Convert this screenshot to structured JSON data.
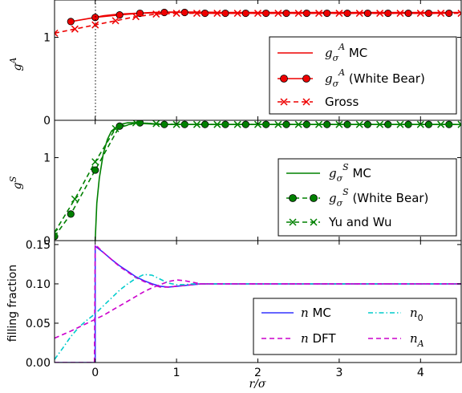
{
  "chart_data": [
    {
      "type": "line",
      "panel": "top",
      "ylabel": "g^A",
      "xlim": [
        -0.5,
        4.5
      ],
      "ylim": [
        0,
        1.45
      ],
      "yticks": [
        "0",
        "1"
      ],
      "legend_position": "lower-right",
      "series": [
        {
          "name": "g_σ^A  MC",
          "style": "solid",
          "color": "#ee0000",
          "x": [
            0,
            0.1,
            0.2,
            0.3,
            0.5,
            0.7,
            0.9,
            1.2,
            1.6,
            2.0,
            2.5,
            3.0,
            3.5,
            4.0,
            4.5
          ],
          "y": [
            1.24,
            1.26,
            1.27,
            1.28,
            1.29,
            1.3,
            1.305,
            1.305,
            1.3,
            1.3,
            1.3,
            1.3,
            1.3,
            1.3,
            1.3
          ]
        },
        {
          "name": "g_σ^A  (White Bear)",
          "style": "solid-circle",
          "color": "#ee0000",
          "x": [
            -0.3,
            0.0,
            0.3,
            0.55,
            0.85,
            1.1,
            1.35,
            1.6,
            1.85,
            2.1,
            2.35,
            2.6,
            2.85,
            3.1,
            3.35,
            3.6,
            3.85,
            4.1,
            4.35
          ],
          "y": [
            1.19,
            1.24,
            1.27,
            1.29,
            1.3,
            1.3,
            1.29,
            1.29,
            1.29,
            1.29,
            1.29,
            1.29,
            1.29,
            1.29,
            1.29,
            1.29,
            1.29,
            1.29,
            1.29
          ]
        },
        {
          "name": "Gross",
          "style": "dashed-x",
          "color": "#ee0000",
          "x": [
            -0.5,
            -0.25,
            0.0,
            0.25,
            0.5,
            0.75,
            1.0,
            1.25,
            1.5,
            1.75,
            2.0,
            2.25,
            2.5,
            2.75,
            3.0,
            3.25,
            3.5,
            3.75,
            4.0,
            4.25,
            4.5
          ],
          "y": [
            1.05,
            1.1,
            1.15,
            1.2,
            1.25,
            1.28,
            1.29,
            1.29,
            1.29,
            1.29,
            1.29,
            1.29,
            1.29,
            1.29,
            1.29,
            1.29,
            1.29,
            1.29,
            1.29,
            1.29,
            1.29
          ]
        }
      ],
      "legend": [
        "g_σ^A  MC",
        "g_σ^A  (White Bear)",
        "Gross"
      ]
    },
    {
      "type": "line",
      "panel": "middle",
      "ylabel": "g^S",
      "xlim": [
        -0.5,
        4.5
      ],
      "ylim": [
        0,
        1.45
      ],
      "yticks": [
        "0",
        "1"
      ],
      "legend_position": "lower-right",
      "series": [
        {
          "name": "g_σ^S  MC",
          "style": "solid",
          "color": "#008000",
          "x": [
            0,
            0.02,
            0.05,
            0.1,
            0.15,
            0.2,
            0.3,
            0.4,
            0.5,
            0.6,
            0.8,
            1.0,
            1.5,
            2.0,
            2.5,
            3.0,
            3.5,
            4.0,
            4.5
          ],
          "y": [
            0,
            0.45,
            0.75,
            1.05,
            1.22,
            1.32,
            1.4,
            1.42,
            1.42,
            1.41,
            1.4,
            1.4,
            1.4,
            1.4,
            1.4,
            1.4,
            1.4,
            1.4,
            1.4
          ]
        },
        {
          "name": "g_σ^S  (White Bear)",
          "style": "dashed-circle",
          "color": "#008000",
          "x": [
            -0.5,
            -0.3,
            0.0,
            0.3,
            0.55,
            0.85,
            1.1,
            1.35,
            1.6,
            1.85,
            2.1,
            2.35,
            2.6,
            2.85,
            3.1,
            3.35,
            3.6,
            3.85,
            4.1,
            4.35
          ],
          "y": [
            0.05,
            0.32,
            0.85,
            1.38,
            1.42,
            1.4,
            1.4,
            1.4,
            1.4,
            1.4,
            1.4,
            1.4,
            1.4,
            1.4,
            1.4,
            1.4,
            1.4,
            1.4,
            1.4,
            1.4
          ]
        },
        {
          "name": "Yu and Wu",
          "style": "dashed-x",
          "color": "#008000",
          "x": [
            -0.5,
            -0.25,
            0.0,
            0.25,
            0.5,
            0.75,
            1.0,
            1.25,
            1.5,
            1.75,
            2.0,
            2.25,
            2.5,
            2.75,
            3.0,
            3.25,
            3.5,
            3.75,
            4.0,
            4.25,
            4.5
          ],
          "y": [
            0.1,
            0.5,
            0.95,
            1.35,
            1.42,
            1.41,
            1.4,
            1.4,
            1.4,
            1.4,
            1.4,
            1.4,
            1.4,
            1.4,
            1.4,
            1.4,
            1.4,
            1.4,
            1.4,
            1.4,
            1.4
          ]
        }
      ],
      "legend": [
        "g_σ^S  MC",
        "g_σ^S  (White Bear)",
        "Yu and Wu"
      ]
    },
    {
      "type": "line",
      "panel": "bottom",
      "ylabel": "filling fraction",
      "xlabel": "r/σ",
      "xlim": [
        -0.5,
        4.5
      ],
      "ylim": [
        0,
        0.155
      ],
      "xticks": [
        "0",
        "1",
        "2",
        "3",
        "4"
      ],
      "yticks": [
        "0.00",
        "0.05",
        "0.10",
        "0.15"
      ],
      "legend_position": "lower-right",
      "legend_columns": 2,
      "series": [
        {
          "name": "n MC",
          "style": "solid",
          "color": "#3333ff",
          "x": [
            -0.5,
            -0.05,
            0.0,
            0.0,
            0.1,
            0.2,
            0.3,
            0.4,
            0.5,
            0.6,
            0.7,
            0.8,
            0.9,
            1.0,
            1.1,
            1.2,
            1.3,
            1.5,
            2.0,
            2.5,
            3.0,
            3.5,
            4.0,
            4.5
          ],
          "y": [
            0,
            0,
            0,
            0.148,
            0.14,
            0.131,
            0.123,
            0.116,
            0.109,
            0.104,
            0.1,
            0.097,
            0.096,
            0.097,
            0.098,
            0.099,
            0.1,
            0.1,
            0.1,
            0.1,
            0.1,
            0.1,
            0.1,
            0.1
          ]
        },
        {
          "name": "n DFT",
          "style": "dashed",
          "color": "#cc00cc",
          "x": [
            -0.5,
            -0.01,
            0.0,
            0.1,
            0.2,
            0.3,
            0.4,
            0.5,
            0.6,
            0.7,
            0.8,
            0.9,
            1.0,
            1.1,
            1.2,
            1.3,
            1.5,
            2.0,
            2.5,
            3.0,
            3.5,
            4.0,
            4.5
          ],
          "y": [
            0,
            0,
            0.15,
            0.14,
            0.131,
            0.122,
            0.115,
            0.108,
            0.103,
            0.099,
            0.096,
            0.096,
            0.097,
            0.098,
            0.099,
            0.1,
            0.1,
            0.1,
            0.1,
            0.1,
            0.1,
            0.1,
            0.1
          ]
        },
        {
          "name": "n_0",
          "style": "dashdot",
          "color": "#00cccc",
          "x": [
            -0.5,
            -0.4,
            -0.3,
            -0.2,
            -0.1,
            0.0,
            0.1,
            0.2,
            0.3,
            0.4,
            0.5,
            0.6,
            0.7,
            0.8,
            0.9,
            1.0,
            1.1,
            1.2,
            1.4,
            2.0,
            3.0,
            4.0,
            4.5
          ],
          "y": [
            0.004,
            0.018,
            0.033,
            0.045,
            0.054,
            0.062,
            0.072,
            0.082,
            0.092,
            0.1,
            0.107,
            0.112,
            0.111,
            0.106,
            0.101,
            0.099,
            0.099,
            0.1,
            0.1,
            0.1,
            0.1,
            0.1,
            0.1
          ]
        },
        {
          "name": "n_A",
          "style": "dashed",
          "color": "#cc00cc",
          "x": [
            -0.5,
            -0.3,
            -0.1,
            0.0,
            0.1,
            0.2,
            0.3,
            0.4,
            0.5,
            0.6,
            0.7,
            0.8,
            0.9,
            1.0,
            1.1,
            1.2,
            1.3,
            1.5,
            2.0,
            3.0,
            4.0,
            4.5
          ],
          "y": [
            0.031,
            0.04,
            0.05,
            0.055,
            0.06,
            0.066,
            0.072,
            0.078,
            0.084,
            0.09,
            0.095,
            0.099,
            0.103,
            0.105,
            0.104,
            0.102,
            0.1,
            0.1,
            0.1,
            0.1,
            0.1,
            0.1
          ]
        }
      ],
      "legend": [
        "n MC",
        "n DFT",
        "n_0",
        "n_A"
      ]
    }
  ]
}
